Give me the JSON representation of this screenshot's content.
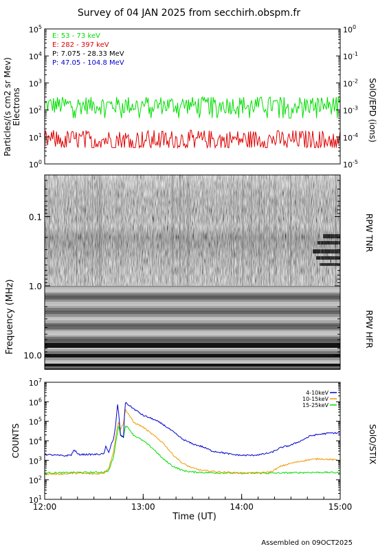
{
  "title": "Survey of 04 JAN 2025 from secchirh.obspm.fr",
  "footer": "Assembled on 09OCT2025",
  "colors": {
    "green": "#00dd00",
    "red": "#dd0000",
    "black": "#000000",
    "blue": "#0000cc",
    "orange": "#ee9900"
  },
  "chart_data": [
    {
      "type": "line",
      "panel": "epd",
      "ylabel_left": "Particles/(s cm2 sr Mev)",
      "ylabel_left2": "Electrons",
      "ylabel_right": "SolO/EPD (ions)",
      "y_scale": "log",
      "ylim": [
        1,
        100000
      ],
      "y_ticks": [
        {
          "v": 1,
          "base": "10",
          "exp": "0"
        },
        {
          "v": 10,
          "base": "10",
          "exp": "1"
        },
        {
          "v": 100,
          "base": "10",
          "exp": "2"
        },
        {
          "v": 1000,
          "base": "10",
          "exp": "3"
        },
        {
          "v": 10000,
          "base": "10",
          "exp": "4"
        },
        {
          "v": 100000,
          "base": "10",
          "exp": "5"
        }
      ],
      "y2_ticks": [
        {
          "base": "10",
          "exp": "-5"
        },
        {
          "base": "10",
          "exp": "-4"
        },
        {
          "base": "10",
          "exp": "-3"
        },
        {
          "base": "10",
          "exp": "-2"
        },
        {
          "base": "10",
          "exp": "-1"
        },
        {
          "base": "10",
          "exp": "0"
        }
      ],
      "legend": [
        {
          "label": "E: 53 - 73 keV",
          "color": "#00dd00"
        },
        {
          "label": "E: 282 - 397 keV",
          "color": "#dd0000"
        },
        {
          "label": "P: 7.075 - 28.33 MeV",
          "color": "#000000"
        },
        {
          "label": "P: 47.05 - 104.8 MeV",
          "color": "#0000cc"
        }
      ],
      "series": [
        {
          "label": "E: 53 - 73 keV",
          "color": "#00dd00",
          "typical": 150,
          "range": [
            50,
            300
          ]
        },
        {
          "label": "E: 282 - 397 keV",
          "color": "#dd0000",
          "typical": 8,
          "range": [
            4,
            25
          ]
        }
      ]
    },
    {
      "type": "heatmap",
      "panel": "rpw",
      "ylabel": "Frequency (MHz)",
      "label_tnr": "RPW TNR",
      "label_hfr": "RPW HFR",
      "y_scale": "log",
      "ylim": [
        0.025,
        16
      ],
      "y_ticks": [
        {
          "v": 0.1,
          "label": "0.1"
        },
        {
          "v": 1.0,
          "label": "1.0"
        },
        {
          "v": 10.0,
          "label": "10.0"
        }
      ],
      "tnr_range_mhz": [
        0.025,
        1.0
      ],
      "hfr_range_mhz": [
        1.0,
        16
      ]
    },
    {
      "type": "line",
      "panel": "stix",
      "ylabel": "COUNTS",
      "ylabel_right": "SolO/STIX",
      "xlabel": "Time (UT)",
      "y_scale": "log",
      "ylim": [
        10,
        10000000
      ],
      "y_ticks": [
        {
          "v": 10,
          "base": "10",
          "exp": "1"
        },
        {
          "v": 100,
          "base": "10",
          "exp": "2"
        },
        {
          "v": 1000,
          "base": "10",
          "exp": "3"
        },
        {
          "v": 10000,
          "base": "10",
          "exp": "4"
        },
        {
          "v": 100000,
          "base": "10",
          "exp": "5"
        },
        {
          "v": 1000000,
          "base": "10",
          "exp": "6"
        },
        {
          "v": 10000000,
          "base": "10",
          "exp": "7"
        }
      ],
      "x_range_hours": [
        12,
        15
      ],
      "x_ticks": [
        {
          "v": 12,
          "label": "12:00"
        },
        {
          "v": 13,
          "label": "13:00"
        },
        {
          "v": 14,
          "label": "14:00"
        },
        {
          "v": 15,
          "label": "15:00"
        }
      ],
      "legend": [
        {
          "label": "4-10keV",
          "color": "#0000cc"
        },
        {
          "label": "10-15keV",
          "color": "#ee9900"
        },
        {
          "label": "15-25keV",
          "color": "#00dd00"
        }
      ],
      "series": [
        {
          "label": "4-10keV",
          "color": "#0000cc",
          "points": [
            [
              12.0,
              2000
            ],
            [
              12.2,
              1700
            ],
            [
              12.27,
              1900
            ],
            [
              12.3,
              3500
            ],
            [
              12.34,
              2000
            ],
            [
              12.5,
              2000
            ],
            [
              12.6,
              2100
            ],
            [
              12.62,
              5000
            ],
            [
              12.65,
              2500
            ],
            [
              12.68,
              8000
            ],
            [
              12.7,
              12000
            ],
            [
              12.72,
              60000
            ],
            [
              12.74,
              700000
            ],
            [
              12.75,
              300000
            ],
            [
              12.77,
              20000
            ],
            [
              12.8,
              15000
            ],
            [
              12.81,
              200000
            ],
            [
              12.82,
              900000
            ],
            [
              12.85,
              700000
            ],
            [
              12.9,
              450000
            ],
            [
              13.0,
              200000
            ],
            [
              13.1,
              130000
            ],
            [
              13.2,
              70000
            ],
            [
              13.3,
              30000
            ],
            [
              13.4,
              12000
            ],
            [
              13.5,
              7000
            ],
            [
              13.6,
              5000
            ],
            [
              13.7,
              3000
            ],
            [
              13.8,
              2500
            ],
            [
              13.9,
              2000
            ],
            [
              14.0,
              1800
            ],
            [
              14.1,
              1800
            ],
            [
              14.2,
              2000
            ],
            [
              14.3,
              2500
            ],
            [
              14.4,
              4500
            ],
            [
              14.5,
              6000
            ],
            [
              14.6,
              10000
            ],
            [
              14.7,
              18000
            ],
            [
              14.8,
              22000
            ],
            [
              14.9,
              25000
            ],
            [
              15.0,
              25000
            ]
          ]
        },
        {
          "label": "10-15keV",
          "color": "#ee9900",
          "points": [
            [
              12.0,
              200
            ],
            [
              12.2,
              200
            ],
            [
              12.3,
              220
            ],
            [
              12.5,
              200
            ],
            [
              12.6,
              220
            ],
            [
              12.65,
              400
            ],
            [
              12.7,
              3000
            ],
            [
              12.73,
              30000
            ],
            [
              12.75,
              100000
            ],
            [
              12.77,
              40000
            ],
            [
              12.8,
              80000
            ],
            [
              12.82,
              400000
            ],
            [
              12.86,
              200000
            ],
            [
              12.9,
              90000
            ],
            [
              13.0,
              50000
            ],
            [
              13.1,
              20000
            ],
            [
              13.2,
              8000
            ],
            [
              13.3,
              2000
            ],
            [
              13.4,
              700
            ],
            [
              13.5,
              400
            ],
            [
              13.6,
              300
            ],
            [
              13.8,
              250
            ],
            [
              14.0,
              220
            ],
            [
              14.2,
              230
            ],
            [
              14.3,
              260
            ],
            [
              14.4,
              500
            ],
            [
              14.5,
              700
            ],
            [
              14.6,
              900
            ],
            [
              14.7,
              1100
            ],
            [
              14.8,
              1200
            ],
            [
              14.9,
              1100
            ],
            [
              15.0,
              1000
            ]
          ]
        },
        {
          "label": "15-25keV",
          "color": "#00dd00",
          "points": [
            [
              12.0,
              230
            ],
            [
              12.2,
              230
            ],
            [
              12.3,
              240
            ],
            [
              12.5,
              240
            ],
            [
              12.6,
              250
            ],
            [
              12.65,
              300
            ],
            [
              12.7,
              1500
            ],
            [
              12.73,
              15000
            ],
            [
              12.75,
              60000
            ],
            [
              12.77,
              20000
            ],
            [
              12.8,
              15000
            ],
            [
              12.82,
              60000
            ],
            [
              12.86,
              40000
            ],
            [
              12.9,
              20000
            ],
            [
              13.0,
              10000
            ],
            [
              13.1,
              4000
            ],
            [
              13.2,
              1200
            ],
            [
              13.3,
              500
            ],
            [
              13.4,
              300
            ],
            [
              13.5,
              250
            ],
            [
              13.7,
              230
            ],
            [
              14.0,
              220
            ],
            [
              14.3,
              220
            ],
            [
              14.5,
              230
            ],
            [
              14.7,
              240
            ],
            [
              14.9,
              240
            ],
            [
              15.0,
              230
            ]
          ]
        }
      ]
    }
  ]
}
